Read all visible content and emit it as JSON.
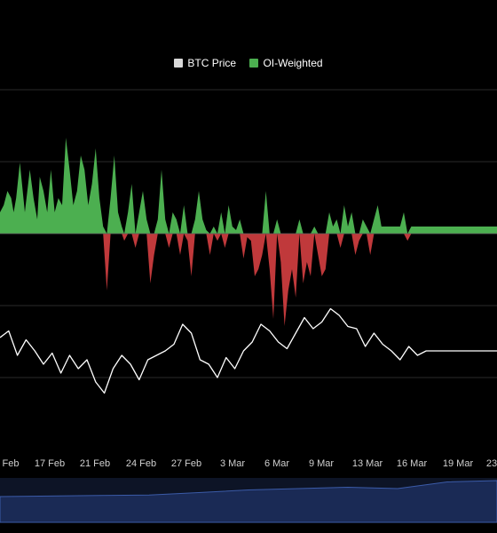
{
  "chart_data": {
    "type": "area",
    "title": "",
    "xlabel": "",
    "ylabel": "",
    "legend": {
      "placement": "top-center",
      "items": [
        {
          "label": "BTC Price",
          "color": "#d9d9d9"
        },
        {
          "label": "OI-Weighted",
          "color": "#4caf50"
        }
      ]
    },
    "x_tick_labels": [
      "Feb",
      "17 Feb",
      "21 Feb",
      "24 Feb",
      "27 Feb",
      "3 Mar",
      "6 Mar",
      "9 Mar",
      "13 Mar",
      "16 Mar",
      "19 Mar",
      "23"
    ],
    "x_range_days": [
      0,
      40
    ],
    "series": [
      {
        "name": "OI-Weighted",
        "color_positive": "#4caf50",
        "color_negative": "#c0393b",
        "x": [
          0,
          0.3,
          0.6,
          0.9,
          1.1,
          1.3,
          1.6,
          2.0,
          2.4,
          2.7,
          3.0,
          3.2,
          3.5,
          3.8,
          4.1,
          4.4,
          4.7,
          5.0,
          5.3,
          5.6,
          5.9,
          6.2,
          6.5,
          6.8,
          7.1,
          7.4,
          7.7,
          8.0,
          8.3,
          8.6,
          8.9,
          9.2,
          9.5,
          9.8,
          10.0,
          10.3,
          10.6,
          10.9,
          11.2,
          11.5,
          11.8,
          12.1,
          12.4,
          12.7,
          13.0,
          13.3,
          13.6,
          13.9,
          14.2,
          14.5,
          14.8,
          15.1,
          15.4,
          15.7,
          16.0,
          16.3,
          16.6,
          16.9,
          17.2,
          17.5,
          17.8,
          18.1,
          18.4,
          18.7,
          19.0,
          19.3,
          19.6,
          19.9,
          20.2,
          20.5,
          20.8,
          21.1,
          21.4,
          21.7,
          22.0,
          22.3,
          22.6,
          22.9,
          23.2,
          23.5,
          23.8,
          24.1,
          24.4,
          24.7,
          25.0,
          25.3,
          25.6,
          25.9,
          26.2,
          26.5,
          26.8,
          27.1,
          27.4,
          27.7,
          28.0,
          28.3,
          28.6,
          28.9,
          29.2,
          29.5,
          29.8,
          30.1,
          30.4,
          30.7,
          31.0,
          31.3,
          31.6,
          31.9,
          32.2,
          32.5,
          32.8,
          33.1,
          33.4,
          33.7,
          34.0,
          34.3,
          34.6,
          34.9,
          35.2,
          35.5,
          35.8,
          36.1,
          36.4,
          36.7,
          37.0,
          37.3,
          37.6,
          37.9,
          38.2,
          38.5,
          38.8,
          39.1,
          39.4,
          39.7,
          40.0
        ],
        "values": [
          0.3,
          0.4,
          0.6,
          0.5,
          0.3,
          0.5,
          1.0,
          0.3,
          0.9,
          0.5,
          0.2,
          0.8,
          0.6,
          0.3,
          0.9,
          0.3,
          0.5,
          0.4,
          1.35,
          0.9,
          0.4,
          0.6,
          1.1,
          0.9,
          0.4,
          0.7,
          1.2,
          0.5,
          0.1,
          -0.8,
          0.5,
          1.1,
          0.3,
          0.1,
          -0.1,
          0.3,
          0.7,
          -0.2,
          0.3,
          0.6,
          0.2,
          -0.7,
          -0.3,
          0.2,
          0.9,
          0.2,
          -0.2,
          0.3,
          0.2,
          -0.3,
          0.4,
          -0.1,
          -0.6,
          0.2,
          0.6,
          0.2,
          0.05,
          -0.3,
          0.1,
          -0.1,
          0.3,
          -0.2,
          0.4,
          0.1,
          0.05,
          0.2,
          -0.35,
          -0.05,
          -0.1,
          -0.6,
          -0.5,
          -0.3,
          0.6,
          -0.5,
          -1.2,
          0.2,
          -0.4,
          -1.3,
          -0.8,
          -0.5,
          -0.9,
          0.2,
          -0.7,
          -0.4,
          -0.6,
          0.1,
          -0.3,
          -0.6,
          -0.5,
          0.3,
          0.1,
          0.2,
          -0.2,
          0.4,
          0.1,
          0.3,
          -0.3,
          -0.1,
          0.2,
          0.1,
          -0.3,
          0.2,
          0.4,
          0.1,
          0.1,
          0.1,
          0.1,
          0.1,
          0.1,
          0.3,
          -0.1,
          0.1,
          0.1,
          0.1,
          0.1,
          0.1,
          0.1,
          0.1,
          0.1,
          0.1,
          0.1,
          0.1,
          0.1,
          0.1,
          0.1,
          0.1,
          0.1,
          0.1,
          0.1,
          0.1,
          0.1,
          0.1,
          0.1,
          0.1,
          0.1
        ]
      },
      {
        "name": "BTC Price",
        "color": "#ffffff",
        "x": [
          0,
          0.7,
          1.4,
          2.1,
          2.8,
          3.5,
          4.2,
          4.9,
          5.6,
          6.3,
          7.0,
          7.7,
          8.4,
          9.1,
          9.8,
          10.5,
          11.2,
          11.9,
          12.6,
          13.3,
          14.0,
          14.7,
          15.4,
          16.1,
          16.8,
          17.5,
          18.2,
          18.9,
          19.6,
          20.3,
          21.0,
          21.7,
          22.4,
          23.1,
          23.8,
          24.5,
          25.2,
          25.9,
          26.6,
          27.3,
          28.0,
          28.7,
          29.4,
          30.1,
          30.8,
          31.5,
          32.2,
          32.9,
          33.6,
          34.3,
          35.0,
          35.7,
          36.4,
          37.1,
          37.8,
          38.5,
          39.2,
          40.0
        ],
        "values": [
          0.1,
          0.25,
          -0.3,
          0.05,
          -0.2,
          -0.5,
          -0.25,
          -0.7,
          -0.3,
          -0.6,
          -0.4,
          -0.9,
          -1.15,
          -0.6,
          -0.3,
          -0.5,
          -0.85,
          -0.4,
          -0.3,
          -0.2,
          -0.05,
          0.4,
          0.2,
          -0.4,
          -0.5,
          -0.8,
          -0.35,
          -0.6,
          -0.2,
          0.0,
          0.4,
          0.25,
          0.0,
          -0.15,
          0.2,
          0.55,
          0.3,
          0.45,
          0.75,
          0.6,
          0.35,
          0.3,
          -0.1,
          0.2,
          -0.05,
          -0.2,
          -0.4,
          -0.1,
          -0.3,
          -0.2,
          -0.2,
          -0.2,
          -0.2,
          -0.2,
          -0.2,
          -0.2,
          -0.2,
          -0.2
        ]
      },
      {
        "name": "Navigator",
        "color": "#3b5ba8",
        "x": [
          0,
          4,
          8,
          12,
          16,
          20,
          24,
          28,
          32,
          36,
          40
        ],
        "values": [
          0.3,
          0.32,
          0.34,
          0.36,
          0.45,
          0.55,
          0.6,
          0.65,
          0.6,
          0.85,
          0.9
        ]
      }
    ],
    "grid": true
  }
}
